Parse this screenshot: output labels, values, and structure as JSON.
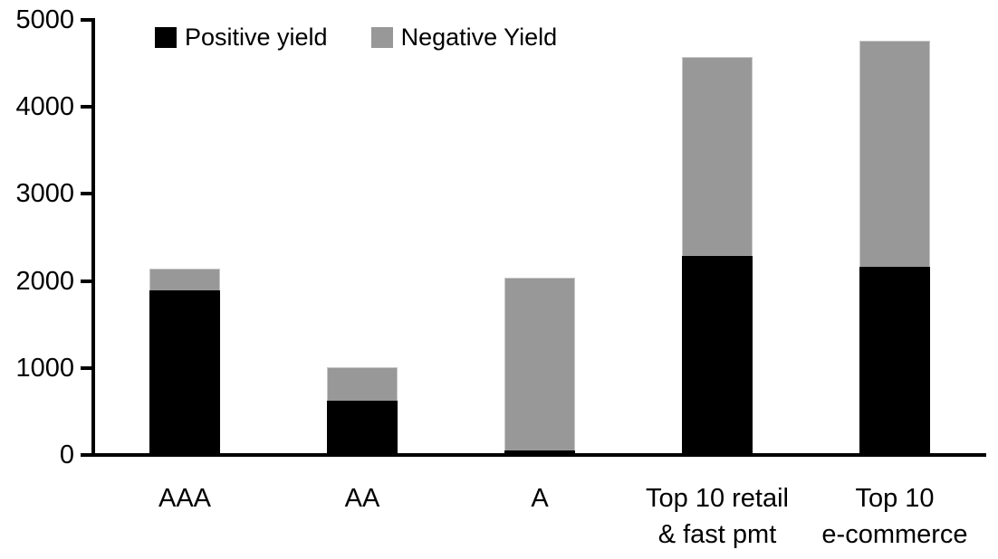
{
  "chart_data": {
    "type": "bar",
    "stacked": true,
    "title": "",
    "xlabel": "",
    "ylabel": "",
    "grid": false,
    "legend_position": "top",
    "ylim": [
      0,
      5000
    ],
    "yticks": [
      0,
      1000,
      2000,
      3000,
      4000,
      5000
    ],
    "categories": [
      "AAA",
      "AA",
      "A",
      "Top 10 retail & fast pmt",
      "Top 10 e-commerce"
    ],
    "category_label_lines": [
      [
        "AAA"
      ],
      [
        "AA"
      ],
      [
        "A"
      ],
      [
        "Top 10 retail",
        "& fast pmt"
      ],
      [
        "Top 10",
        "e-commerce"
      ]
    ],
    "series": [
      {
        "name": "Positive yield",
        "color": "#000000",
        "values": [
          1890,
          620,
          50,
          2290,
          2160
        ]
      },
      {
        "name": "Negative Yield",
        "color": "#989898",
        "values": [
          250,
          390,
          1990,
          2280,
          2600
        ]
      }
    ]
  }
}
